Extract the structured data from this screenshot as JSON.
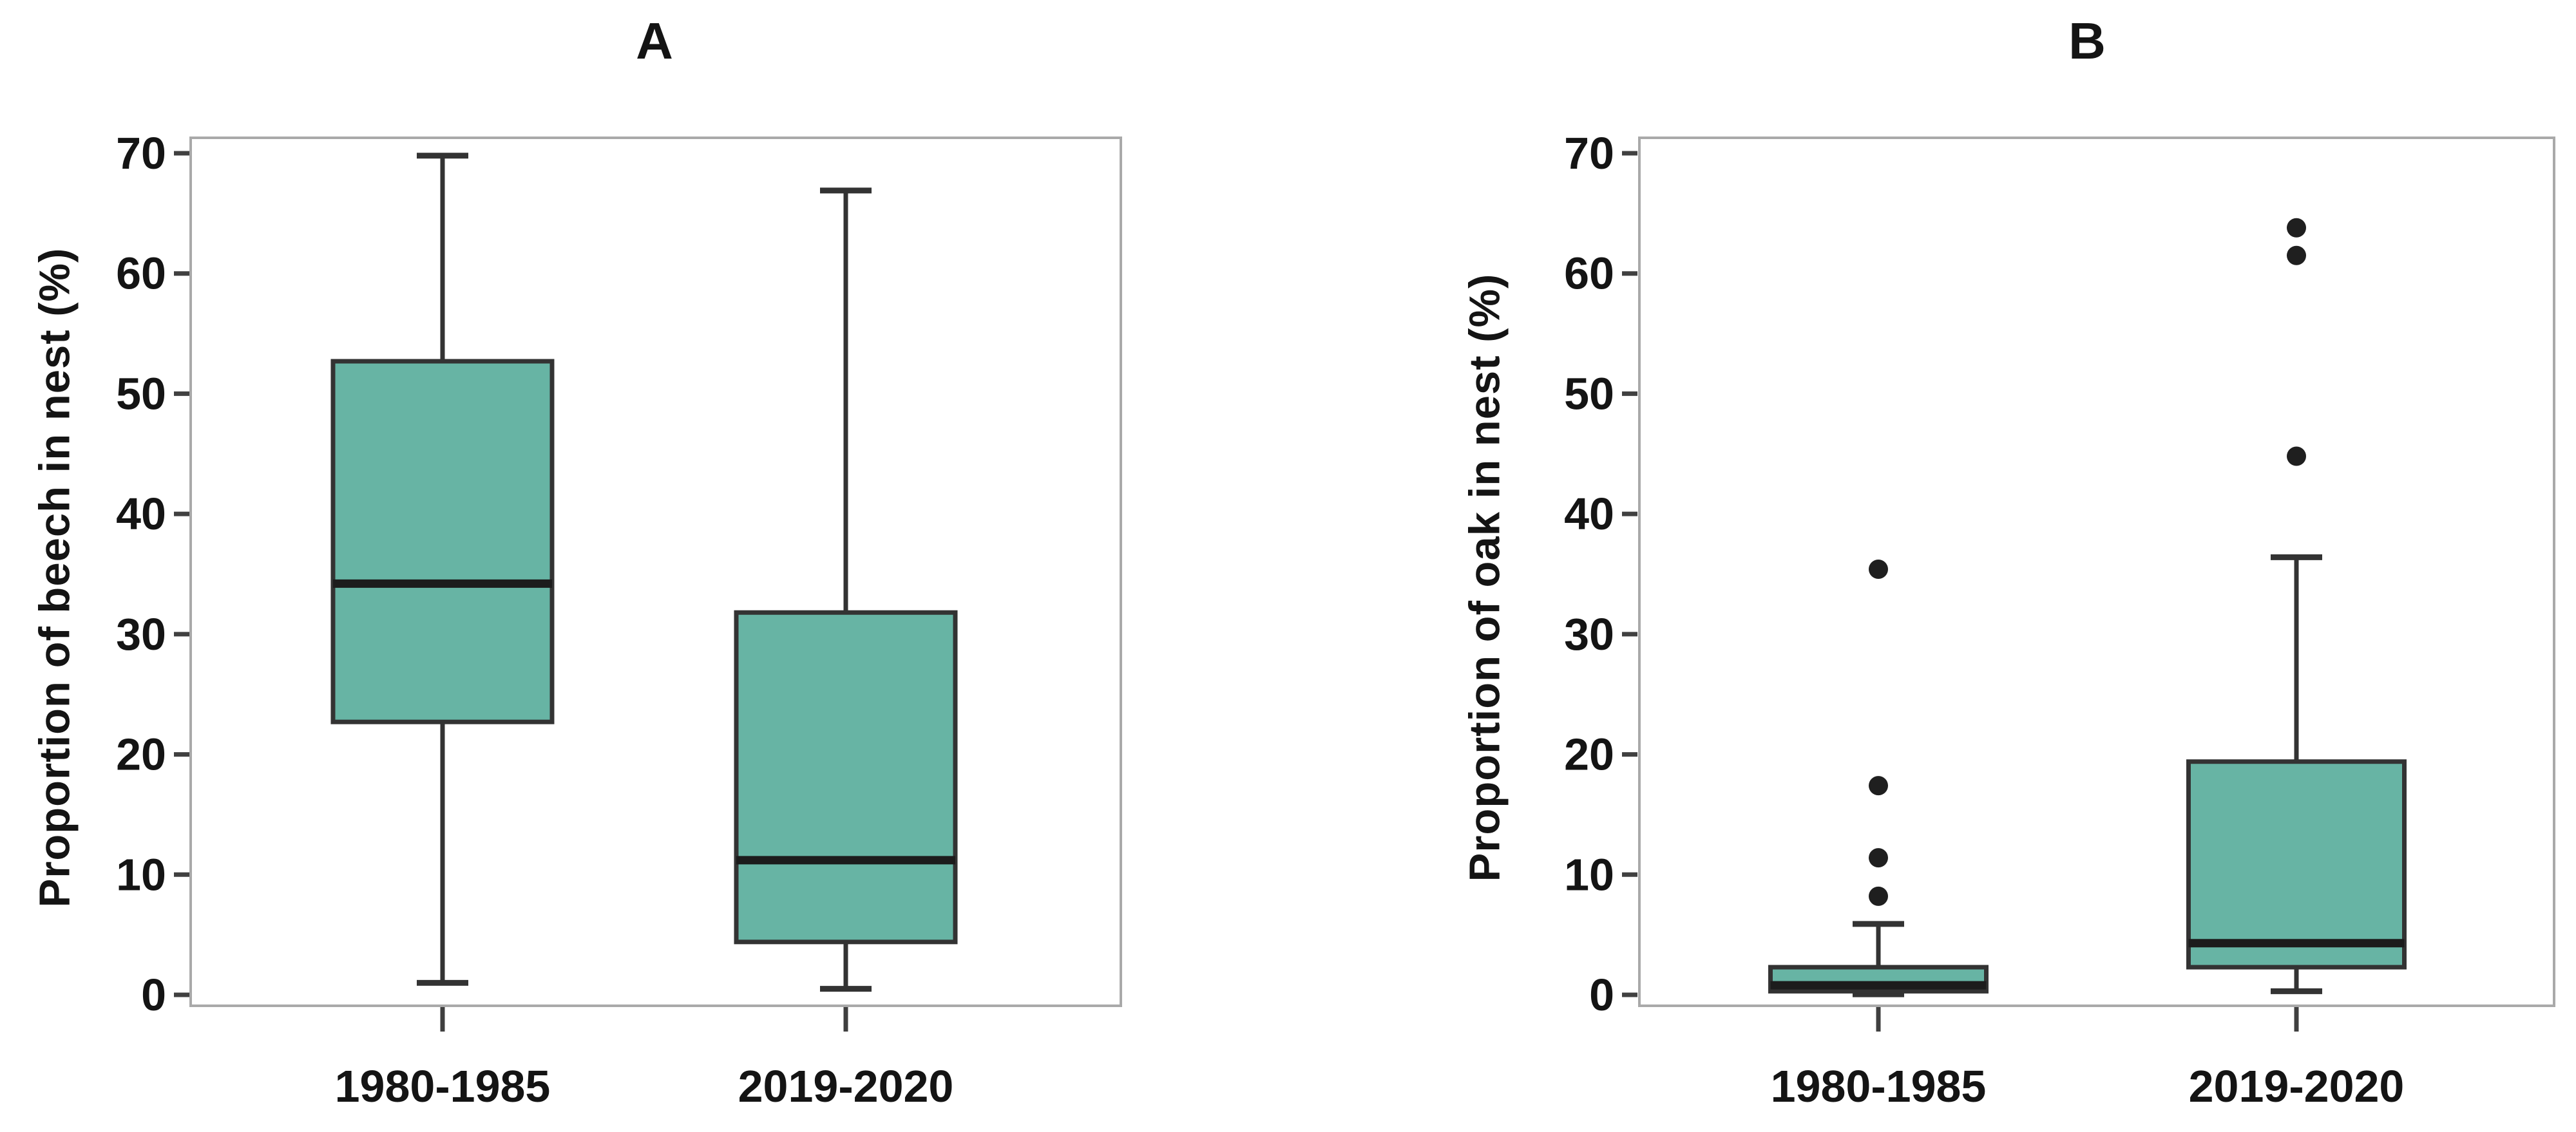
{
  "figure": {
    "background": "#ffffff",
    "accent_color": "#67b4a4",
    "frame_color": "#a9a9a9",
    "text_color": "#141414"
  },
  "chart_data": [
    {
      "type": "boxplot",
      "title": "A",
      "ylabel": "Proportion of beech in nest (%)",
      "xlabel": "",
      "categories": [
        "1980-1985",
        "2019-2020"
      ],
      "ylim": [
        0,
        70
      ],
      "yticks": [
        0,
        10,
        20,
        30,
        40,
        50,
        60,
        70
      ],
      "grid": false,
      "legend": null,
      "box_fill": "#67b4a4",
      "box_stroke": "#333333",
      "median_color": "#1c1c1c",
      "outlier_color": "#1f1f1f",
      "series": [
        {
          "category": "1980-1985",
          "whisker_low": 1.0,
          "q1": 22.7,
          "median": 34.2,
          "q3": 52.7,
          "whisker_high": 69.8,
          "outliers": []
        },
        {
          "category": "2019-2020",
          "whisker_low": 0.5,
          "q1": 4.4,
          "median": 11.2,
          "q3": 31.8,
          "whisker_high": 66.9,
          "outliers": []
        }
      ]
    },
    {
      "type": "boxplot",
      "title": "B",
      "ylabel": "Proportion of oak in nest (%)",
      "xlabel": "",
      "categories": [
        "1980-1985",
        "2019-2020"
      ],
      "ylim": [
        0,
        70
      ],
      "yticks": [
        0,
        10,
        20,
        30,
        40,
        50,
        60,
        70
      ],
      "grid": false,
      "legend": null,
      "box_fill": "#67b4a4",
      "box_stroke": "#333333",
      "median_color": "#1c1c1c",
      "outlier_color": "#1f1f1f",
      "series": [
        {
          "category": "1980-1985",
          "whisker_low": 0.05,
          "q1": 0.3,
          "median": 0.8,
          "q3": 2.3,
          "whisker_high": 5.9,
          "outliers": [
            8.2,
            11.4,
            17.4,
            35.4
          ]
        },
        {
          "category": "2019-2020",
          "whisker_low": 0.3,
          "q1": 2.3,
          "median": 4.3,
          "q3": 19.4,
          "whisker_high": 36.4,
          "outliers": [
            44.8,
            61.5,
            63.8
          ]
        }
      ]
    }
  ]
}
